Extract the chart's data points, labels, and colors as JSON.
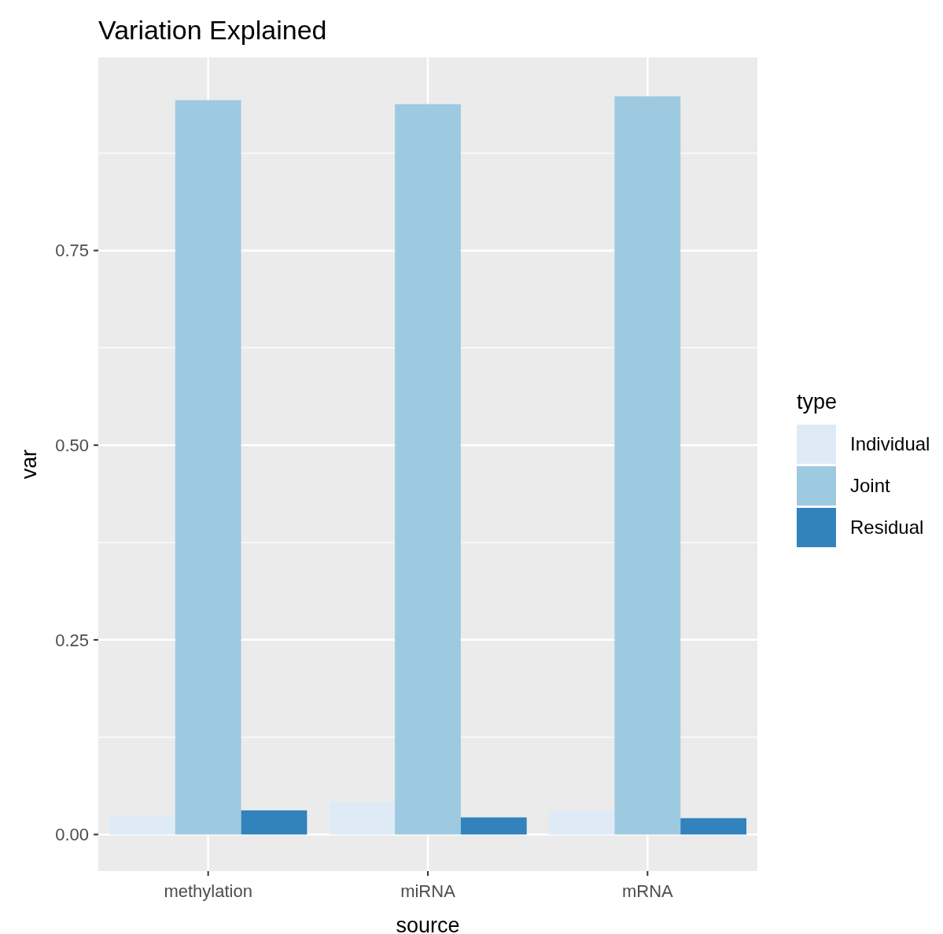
{
  "chart_data": {
    "type": "bar",
    "title": "Variation Explained",
    "xlabel": "source",
    "ylabel": "var",
    "legend_title": "type",
    "categories": [
      "methylation",
      "miRNA",
      "mRNA"
    ],
    "series": [
      {
        "name": "Individual",
        "color": "#deebf7",
        "values": [
          0.024,
          0.042,
          0.03
        ]
      },
      {
        "name": "Joint",
        "color": "#9ecae1",
        "values": [
          0.943,
          0.938,
          0.948
        ]
      },
      {
        "name": "Residual",
        "color": "#3182bd",
        "values": [
          0.031,
          0.022,
          0.021
        ]
      }
    ],
    "ylim": [
      -0.047,
      0.998
    ],
    "yticks": [
      {
        "value": 0,
        "label": "0.00"
      },
      {
        "value": 0.25,
        "label": "0.25"
      },
      {
        "value": 0.5,
        "label": "0.50"
      },
      {
        "value": 0.75,
        "label": "0.75"
      }
    ],
    "grid": true,
    "legend": "right"
  }
}
